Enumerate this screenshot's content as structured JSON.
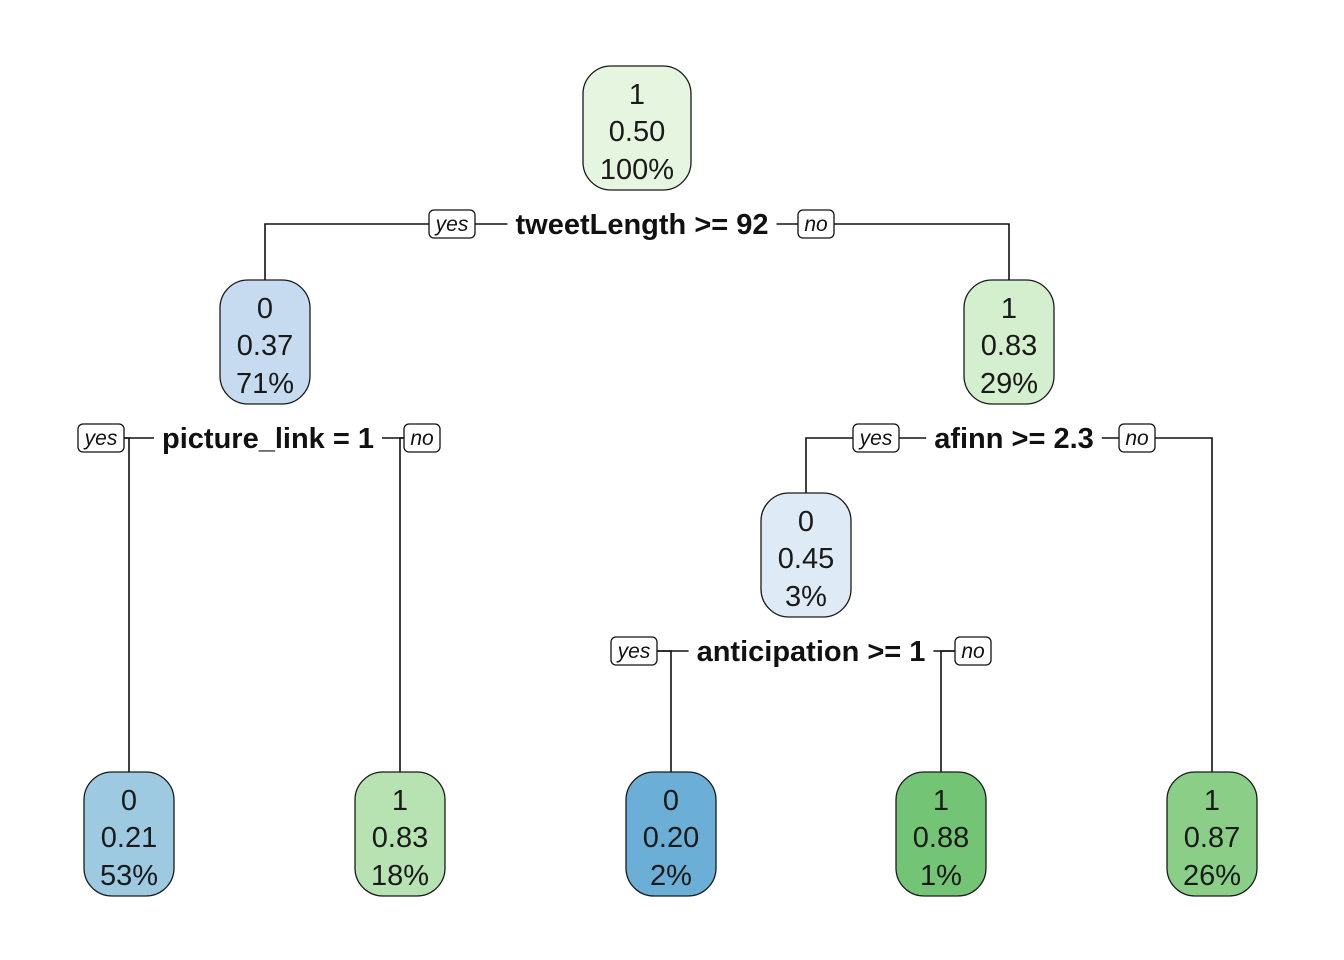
{
  "tree": {
    "labels": {
      "yes": "yes",
      "no": "no"
    },
    "nodes": [
      {
        "id": "root",
        "class": "1",
        "prob": "0.50",
        "pct": "100%",
        "color": "#e5f5e0"
      },
      {
        "id": "n-left",
        "class": "0",
        "prob": "0.37",
        "pct": "71%",
        "color": "#c6dbef"
      },
      {
        "id": "n-right",
        "class": "1",
        "prob": "0.83",
        "pct": "29%",
        "color": "#d4efcd"
      },
      {
        "id": "n-afinn-yes",
        "class": "0",
        "prob": "0.45",
        "pct": "3%",
        "color": "#deebf7"
      },
      {
        "id": "leaf-1",
        "class": "0",
        "prob": "0.21",
        "pct": "53%",
        "color": "#9ecae1"
      },
      {
        "id": "leaf-2",
        "class": "1",
        "prob": "0.83",
        "pct": "18%",
        "color": "#b7e2b1"
      },
      {
        "id": "leaf-3",
        "class": "0",
        "prob": "0.20",
        "pct": "2%",
        "color": "#6baed6"
      },
      {
        "id": "leaf-4",
        "class": "1",
        "prob": "0.88",
        "pct": "1%",
        "color": "#74c476"
      },
      {
        "id": "leaf-5",
        "class": "1",
        "prob": "0.87",
        "pct": "26%",
        "color": "#8ace88"
      }
    ],
    "splits": [
      {
        "id": "split-root",
        "label": "tweetLength >= 92"
      },
      {
        "id": "split-left",
        "label": "picture_link = 1"
      },
      {
        "id": "split-right",
        "label": "afinn >= 2.3"
      },
      {
        "id": "split-afinn",
        "label": "anticipation >= 1"
      }
    ]
  }
}
